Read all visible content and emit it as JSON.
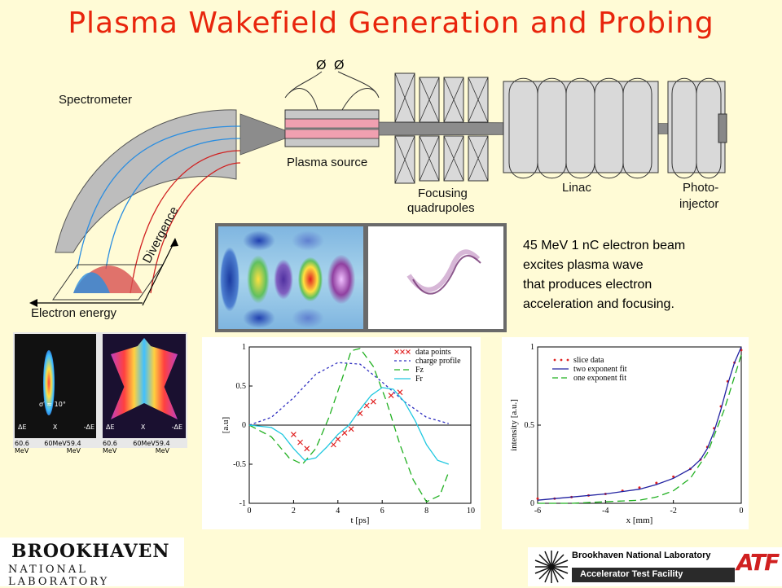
{
  "title": "Plasma Wakefield Generation and Probing",
  "schematic": {
    "spectrometer": "Spectrometer",
    "plasma_source": "Plasma source",
    "focusing_1": "Focusing",
    "focusing_2": "quadrupoles",
    "linac": "Linac",
    "photo_1": "Photo-",
    "photo_2": "injector",
    "divergence": "Divergence",
    "electron_energy": "Electron energy"
  },
  "description": [
    "45 MeV 1 nC electron beam",
    "excites plasma wave",
    "that produces electron",
    "acceleration and focusing."
  ],
  "spectra": {
    "sigma": "σ′ ≈ 10°",
    "labels_left": [
      "60.6 MeV",
      "60MeV",
      "59.4 MeV"
    ],
    "labels_right": [
      "60.6 MeV",
      "60MeV",
      "59.4 MeV"
    ],
    "dE_left": [
      "ΔE",
      "X",
      "-ΔE"
    ],
    "dE_right": [
      "ΔE",
      "X",
      "-ΔE"
    ]
  },
  "chart_data": [
    {
      "type": "line",
      "xlabel": "t [ps]",
      "ylabel": "[a.u]",
      "xlim": [
        0,
        10
      ],
      "ylim": [
        -1,
        1
      ],
      "xticks": [
        0,
        2,
        4,
        6,
        8,
        10
      ],
      "yticks": [
        -1,
        -0.5,
        0,
        0.5,
        1
      ],
      "legend_position": "top-right",
      "series": [
        {
          "name": "data points",
          "style": "x",
          "color": "#e02020",
          "x": [
            2.0,
            2.3,
            2.6,
            3.8,
            4.0,
            4.3,
            4.6,
            5.0,
            5.3,
            5.6,
            6.4,
            6.8
          ],
          "y": [
            -0.12,
            -0.22,
            -0.3,
            -0.25,
            -0.18,
            -0.1,
            -0.05,
            0.15,
            0.25,
            0.3,
            0.38,
            0.42
          ]
        },
        {
          "name": "charge profile",
          "style": "dash",
          "color": "#3030c0",
          "x": [
            0,
            1,
            2,
            3,
            4,
            5,
            6,
            7,
            8,
            9
          ],
          "y": [
            0.0,
            0.1,
            0.35,
            0.65,
            0.8,
            0.78,
            0.55,
            0.3,
            0.1,
            0.02
          ]
        },
        {
          "name": "Fz",
          "style": "longdash",
          "color": "#20b020",
          "x": [
            0,
            1,
            1.8,
            2.4,
            3,
            3.6,
            4.2,
            4.6,
            5,
            5.6,
            6.2,
            6.8,
            7.4,
            8,
            8.6,
            9
          ],
          "y": [
            0.0,
            -0.15,
            -0.42,
            -0.5,
            -0.3,
            0.1,
            0.6,
            0.95,
            0.98,
            0.75,
            0.3,
            -0.25,
            -0.7,
            -0.98,
            -0.9,
            -0.6
          ]
        },
        {
          "name": "Fr",
          "style": "solid",
          "color": "#20c8e0",
          "x": [
            0,
            1,
            1.5,
            2,
            2.5,
            3,
            3.5,
            4,
            4.5,
            5,
            5.5,
            6,
            6.5,
            7,
            7.5,
            8,
            8.5,
            9
          ],
          "y": [
            0.0,
            -0.03,
            -0.12,
            -0.3,
            -0.45,
            -0.42,
            -0.28,
            -0.12,
            0.0,
            0.2,
            0.38,
            0.48,
            0.46,
            0.3,
            0.05,
            -0.25,
            -0.45,
            -0.5
          ]
        }
      ]
    },
    {
      "type": "line",
      "xlabel": "x [mm]",
      "ylabel": "intensity [a.u.]",
      "xlim": [
        -6,
        0
      ],
      "ylim": [
        0,
        1
      ],
      "xticks": [
        -6,
        -4,
        -2,
        0
      ],
      "yticks": [
        0,
        0.5,
        1
      ],
      "legend_position": "top-left",
      "series": [
        {
          "name": "slice data",
          "style": "dots",
          "color": "#e02020",
          "x": [
            -6,
            -5.5,
            -5,
            -4.5,
            -4,
            -3.5,
            -3,
            -2.5,
            -2,
            -1.5,
            -1.2,
            -1,
            -0.8,
            -0.6,
            -0.4,
            -0.2,
            0
          ],
          "y": [
            0.03,
            0.03,
            0.04,
            0.05,
            0.06,
            0.08,
            0.1,
            0.13,
            0.17,
            0.22,
            0.28,
            0.36,
            0.48,
            0.62,
            0.78,
            0.9,
            0.98
          ]
        },
        {
          "name": "two exponent fit",
          "style": "solid",
          "color": "#2020a0",
          "x": [
            -6,
            -5,
            -4,
            -3,
            -2.5,
            -2,
            -1.5,
            -1.2,
            -1,
            -0.8,
            -0.6,
            -0.4,
            -0.2,
            0
          ],
          "y": [
            0.02,
            0.04,
            0.06,
            0.09,
            0.12,
            0.16,
            0.22,
            0.28,
            0.35,
            0.46,
            0.6,
            0.76,
            0.9,
            1.0
          ]
        },
        {
          "name": "one exponent fit",
          "style": "longdash",
          "color": "#20b020",
          "x": [
            -6,
            -5,
            -4,
            -3,
            -2.5,
            -2,
            -1.5,
            -1,
            -0.5,
            0
          ],
          "y": [
            0.0,
            0.0,
            0.01,
            0.02,
            0.04,
            0.08,
            0.16,
            0.32,
            0.6,
            0.95
          ]
        }
      ]
    }
  ],
  "logos": {
    "bnl_1": "BROOKHAVEN",
    "bnl_2": "NATIONAL LABORATORY",
    "atf_1": "Brookhaven National Laboratory",
    "atf_2": "Accelerator Test Facility",
    "atf_mark": "ATF"
  }
}
